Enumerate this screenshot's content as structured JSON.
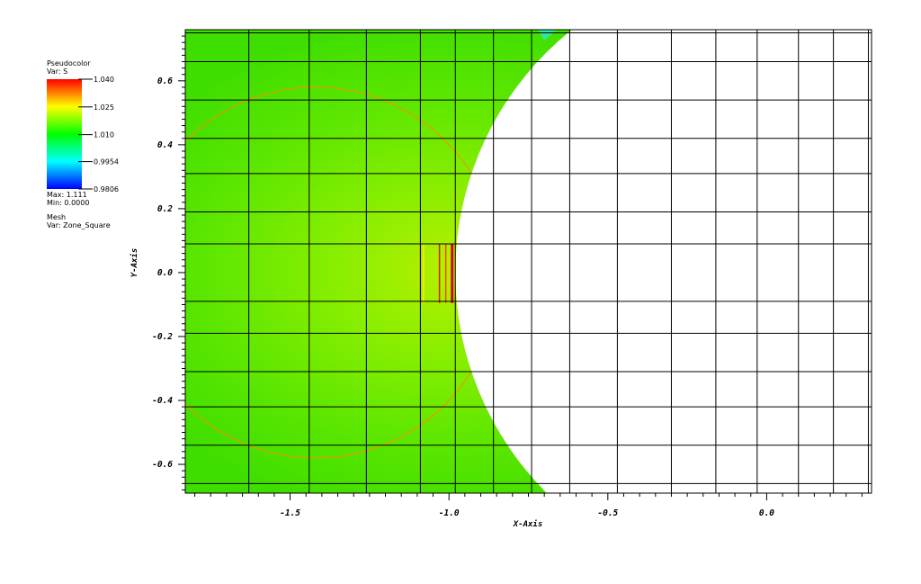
{
  "legend": {
    "pseudocolor_title": "Pseudocolor",
    "pseudocolor_var": "Var: S",
    "colorbar_labels": [
      "1.040",
      "1.025",
      "1.010",
      "0.9954",
      "0.9806"
    ],
    "max_label": "Max:  1.111",
    "min_label": "Min:  0.0000",
    "mesh_title": "Mesh",
    "mesh_var": "Var: Zone_Square"
  },
  "chart_data": {
    "type": "heatmap",
    "title": "",
    "xlabel": "X-Axis",
    "ylabel": "Y-Axis",
    "xlim": [
      -1.83,
      0.33
    ],
    "ylim": [
      -0.69,
      0.76
    ],
    "x_ticks": [
      -1.5,
      -1.0,
      -0.5,
      0.0
    ],
    "x_tick_labels": [
      "-1.5",
      "-1.0",
      "-0.5",
      "0.0"
    ],
    "y_ticks": [
      0.6,
      0.4,
      0.2,
      0.0,
      -0.2,
      -0.4,
      -0.6
    ],
    "y_tick_labels": [
      "0.6",
      "0.4",
      "0.2",
      "0.0",
      "-0.2",
      "-0.4",
      "-0.6"
    ],
    "colorbar": {
      "min": 0.9806,
      "max": 1.04,
      "ticks": [
        1.04,
        1.025,
        1.01,
        0.9954,
        0.9806
      ],
      "colors": [
        "#ff0000",
        "#ffff00",
        "#00ff00",
        "#00ffff",
        "#0000ff"
      ]
    },
    "data_max": 1.111,
    "data_min": 0.0,
    "domain_boundary": {
      "shape": "circle",
      "center": [
        0.0,
        0.0
      ],
      "radius": 0.98
    },
    "mesh_x_lines": [
      -1.83,
      -1.63,
      -1.44,
      -1.26,
      -1.09,
      -0.98,
      -0.86,
      -0.74,
      -0.62,
      -0.47,
      -0.3,
      -0.16,
      -0.03,
      0.1,
      0.21,
      0.32
    ],
    "mesh_y_lines": [
      0.75,
      0.66,
      0.54,
      0.42,
      0.31,
      0.19,
      0.09,
      -0.09,
      -0.19,
      -0.31,
      -0.42,
      -0.54,
      -0.66
    ],
    "annotations": {
      "contour_circle": {
        "center": [
          -1.42,
          0.0
        ],
        "radius": 0.58,
        "color": "#ff8c00"
      },
      "shock_lines_x": [
        -1.09,
        -1.08,
        -1.03,
        -1.01,
        -0.99
      ]
    }
  }
}
